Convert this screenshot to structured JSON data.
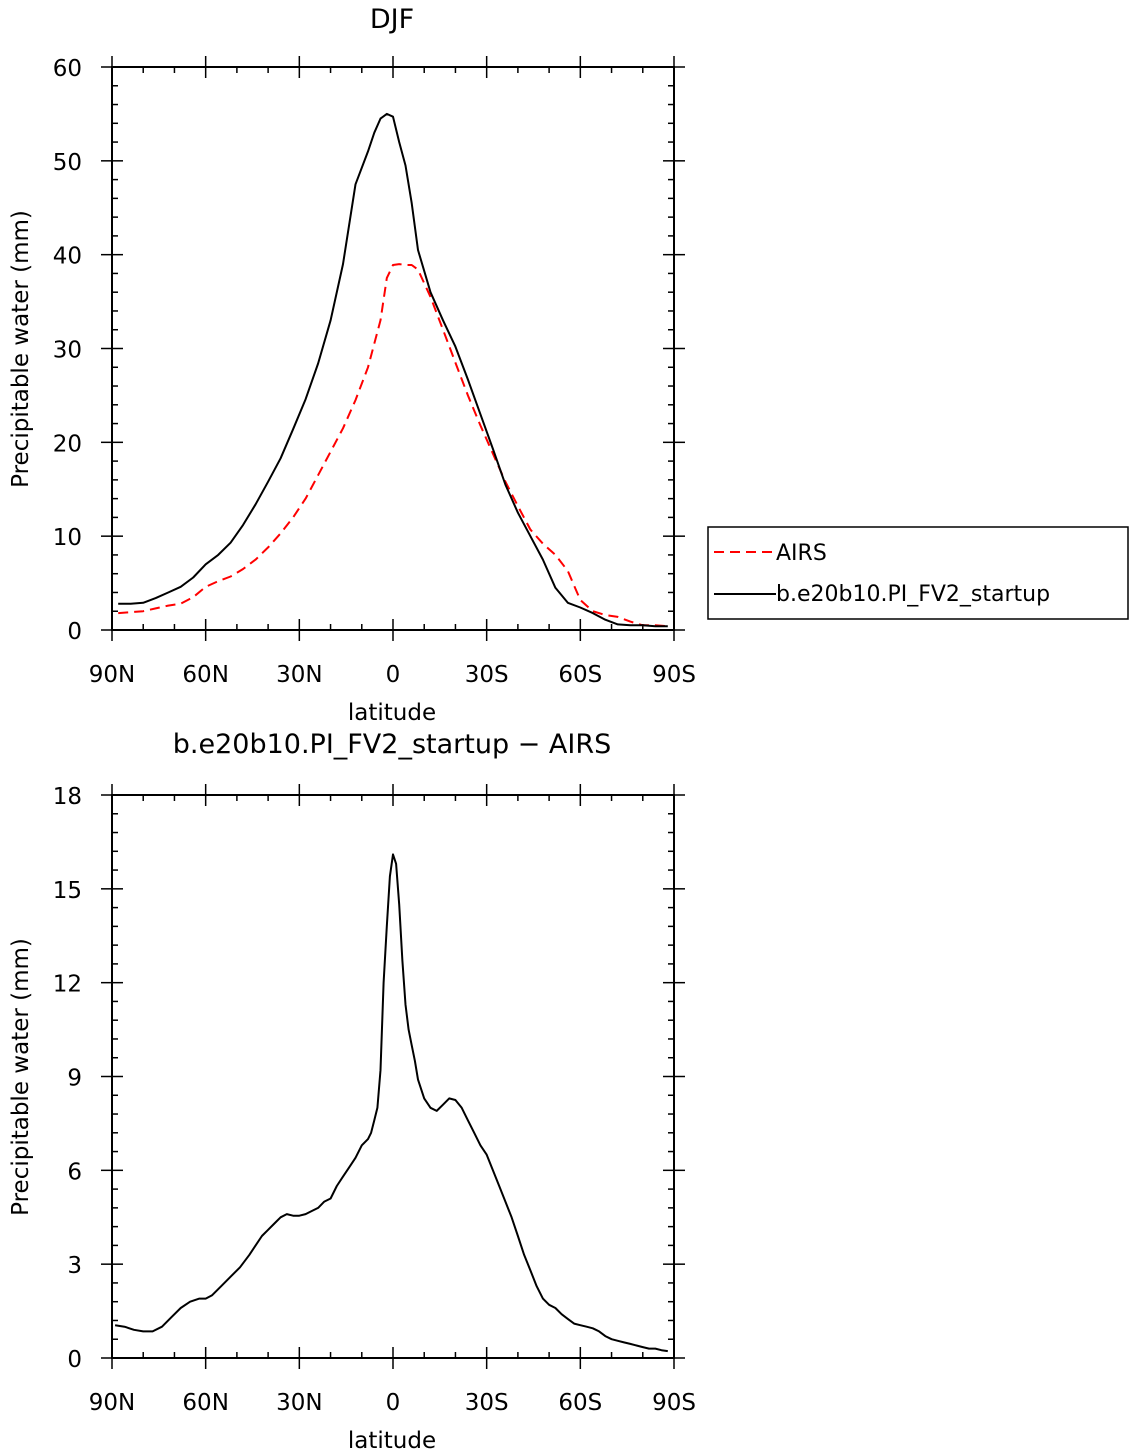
{
  "chart_data": [
    {
      "type": "line",
      "title": "DJF",
      "xlabel": "latitude",
      "ylabel": "Precipitable water (mm)",
      "xlim": [
        90,
        -90
      ],
      "ylim": [
        0,
        60
      ],
      "x_ticks": [
        90,
        60,
        30,
        0,
        -30,
        -60,
        -90
      ],
      "x_tick_labels": [
        "90N",
        "60N",
        "30N",
        "0",
        "30S",
        "60S",
        "90S"
      ],
      "y_ticks": [
        0,
        10,
        20,
        30,
        40,
        50,
        60
      ],
      "y_tick_labels": [
        "0",
        "10",
        "20",
        "30",
        "40",
        "50",
        "60"
      ],
      "legend_position": "right",
      "series": [
        {
          "name": "AIRS",
          "color": "#ff0000",
          "style": "dashed",
          "x": [
            88,
            84,
            80,
            76,
            72,
            68,
            64,
            60,
            56,
            52,
            48,
            44,
            40,
            36,
            32,
            28,
            24,
            20,
            16,
            12,
            8,
            4,
            2,
            0,
            -2,
            -4,
            -6,
            -8,
            -12,
            -16,
            -20,
            -24,
            -28,
            -32,
            -36,
            -40,
            -44,
            -48,
            -52,
            -56,
            -60,
            -64,
            -68,
            -72,
            -76,
            -80,
            -84,
            -88
          ],
          "y": [
            1.8,
            1.9,
            2.0,
            2.3,
            2.6,
            2.8,
            3.5,
            4.6,
            5.2,
            5.7,
            6.5,
            7.5,
            8.8,
            10.3,
            12.0,
            14.0,
            16.5,
            19.0,
            21.5,
            24.5,
            28.0,
            33.0,
            37.5,
            38.9,
            39.0,
            38.9,
            38.9,
            38.4,
            35.5,
            32.0,
            28.5,
            25.0,
            21.8,
            18.8,
            15.8,
            13.2,
            10.7,
            9.2,
            8.0,
            6.3,
            3.2,
            2.0,
            1.6,
            1.4,
            0.9,
            0.5,
            0.5,
            0.4
          ]
        },
        {
          "name": "b.e20b10.PI_FV2_startup",
          "color": "#000000",
          "style": "solid",
          "x": [
            88,
            84,
            80,
            76,
            72,
            68,
            64,
            60,
            56,
            52,
            48,
            44,
            40,
            36,
            32,
            28,
            24,
            20,
            16,
            12,
            8,
            6,
            4,
            2,
            0,
            -2,
            -4,
            -6,
            -8,
            -12,
            -16,
            -20,
            -24,
            -28,
            -32,
            -36,
            -40,
            -44,
            -48,
            -52,
            -56,
            -60,
            -64,
            -68,
            -72,
            -76,
            -80,
            -84,
            -88
          ],
          "y": [
            2.8,
            2.8,
            2.9,
            3.4,
            4.0,
            4.6,
            5.6,
            7.0,
            8.0,
            9.3,
            11.2,
            13.4,
            15.8,
            18.3,
            21.4,
            24.6,
            28.4,
            33.0,
            39.0,
            47.5,
            51.0,
            53.0,
            54.5,
            55.0,
            54.7,
            52.0,
            49.5,
            45.5,
            40.5,
            36.0,
            33.0,
            30.2,
            26.7,
            23.0,
            19.3,
            15.5,
            12.5,
            10.0,
            7.5,
            4.5,
            2.9,
            2.4,
            1.8,
            1.1,
            0.6,
            0.5,
            0.5,
            0.4,
            0.4
          ]
        }
      ]
    },
    {
      "type": "line",
      "title": "b.e20b10.PI_FV2_startup − AIRS",
      "xlabel": "latitude",
      "ylabel": "Precipitable water (mm)",
      "xlim": [
        90,
        -90
      ],
      "ylim": [
        0,
        18
      ],
      "x_ticks": [
        90,
        60,
        30,
        0,
        -30,
        -60,
        -90
      ],
      "x_tick_labels": [
        "90N",
        "60N",
        "30N",
        "0",
        "30S",
        "60S",
        "90S"
      ],
      "y_ticks": [
        0,
        3,
        6,
        9,
        12,
        15,
        18
      ],
      "y_tick_labels": [
        "0",
        "3",
        "6",
        "9",
        "12",
        "15",
        "18"
      ],
      "series": [
        {
          "color": "#000000",
          "style": "solid",
          "x": [
            89,
            86,
            83,
            80,
            77,
            74,
            71,
            68,
            65,
            62,
            60,
            58,
            55,
            52,
            49,
            46,
            44,
            42,
            40,
            38,
            36,
            34,
            32,
            30,
            28,
            26,
            24,
            22,
            20,
            18,
            16,
            14,
            12,
            10,
            8,
            7,
            6,
            5,
            4,
            3,
            2,
            1,
            0,
            -1,
            -2,
            -3,
            -4,
            -5,
            -6,
            -7,
            -8,
            -10,
            -12,
            -14,
            -16,
            -18,
            -20,
            -22,
            -24,
            -26,
            -28,
            -30,
            -32,
            -34,
            -36,
            -38,
            -40,
            -42,
            -44,
            -46,
            -48,
            -50,
            -52,
            -54,
            -56,
            -58,
            -60,
            -62,
            -64,
            -66,
            -68,
            -70,
            -72,
            -74,
            -76,
            -78,
            -80,
            -82,
            -84,
            -86,
            -88
          ],
          "y": [
            1.05,
            1.0,
            0.9,
            0.85,
            0.85,
            1.0,
            1.3,
            1.6,
            1.8,
            1.9,
            1.9,
            2.0,
            2.3,
            2.6,
            2.9,
            3.3,
            3.6,
            3.9,
            4.1,
            4.3,
            4.5,
            4.6,
            4.55,
            4.55,
            4.6,
            4.7,
            4.8,
            5.0,
            5.1,
            5.5,
            5.8,
            6.1,
            6.4,
            6.8,
            7.0,
            7.2,
            7.6,
            8.0,
            9.2,
            12.0,
            13.8,
            15.4,
            16.1,
            15.8,
            14.5,
            12.7,
            11.3,
            10.5,
            10.0,
            9.5,
            8.9,
            8.3,
            8.0,
            7.9,
            8.1,
            8.3,
            8.25,
            8.0,
            7.6,
            7.2,
            6.8,
            6.5,
            6.0,
            5.5,
            5.0,
            4.5,
            3.9,
            3.3,
            2.8,
            2.3,
            1.9,
            1.7,
            1.6,
            1.4,
            1.25,
            1.1,
            1.05,
            1.0,
            0.95,
            0.85,
            0.7,
            0.6,
            0.55,
            0.5,
            0.45,
            0.4,
            0.35,
            0.3,
            0.3,
            0.25,
            0.22
          ]
        }
      ]
    }
  ]
}
